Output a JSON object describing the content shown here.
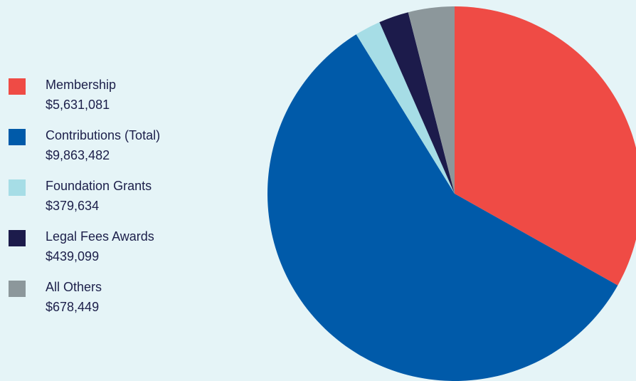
{
  "chart_data": {
    "type": "pie",
    "title": "",
    "legend_position": "left",
    "slices": [
      {
        "label": "Membership",
        "value": 5631081,
        "display": "$5,631,081",
        "color": "#ef4b45"
      },
      {
        "label": "Contributions (Total)",
        "value": 9863482,
        "display": "$9,863,482",
        "color": "#005aa9"
      },
      {
        "label": "Foundation Grants",
        "value": 379634,
        "display": "$379,634",
        "color": "#a6dde6"
      },
      {
        "label": "Legal Fees Awards",
        "value": 439099,
        "display": "$439,099",
        "color": "#1c1b4b"
      },
      {
        "label": "All Others",
        "value": 678449,
        "display": "$678,449",
        "color": "#8c979b"
      }
    ]
  }
}
